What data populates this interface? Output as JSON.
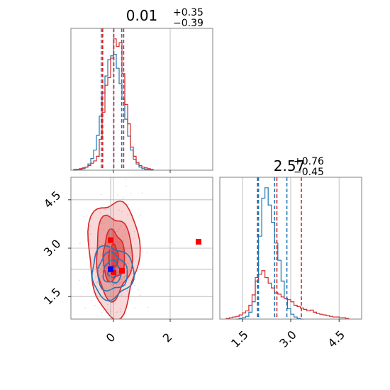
{
  "figure": {
    "type": "corner-plot",
    "colors": {
      "blue": "#1f77b4",
      "red": "#d62728",
      "grid": "#b0b0b0",
      "frame": "#808080",
      "marker_red": "#ff0000",
      "marker_blue": "#0000ff"
    }
  },
  "chart_data": [
    {
      "panel": "hist-param-1",
      "type": "histogram",
      "title": {
        "main": "0.01",
        "sup": "+0.35",
        "sub": "−0.39"
      },
      "xlim": [
        -1.5,
        3.5
      ],
      "gridlines_x": [
        0,
        2
      ],
      "series": [
        {
          "name": "",
          "color": "#1f77b4",
          "bins": [
            -1.4,
            -1.3,
            -1.2,
            -1.1,
            -1.0,
            -0.9,
            -0.8,
            -0.7,
            -0.6,
            -0.5,
            -0.4,
            -0.3,
            -0.2,
            -0.1,
            0.0,
            0.1,
            0.2,
            0.3,
            0.4,
            0.5,
            0.6,
            0.7,
            0.8,
            0.9,
            1.0,
            1.1,
            1.2,
            1.3,
            1.4
          ],
          "counts": [
            0,
            1,
            1,
            2,
            4,
            8,
            15,
            26,
            45,
            70,
            100,
            122,
            143,
            148,
            150,
            132,
            112,
            92,
            66,
            44,
            26,
            14,
            8,
            4,
            2,
            1,
            1,
            0
          ],
          "quantile_lines": [
            -0.43,
            0.01,
            0.29
          ]
        },
        {
          "name": "",
          "color": "#d62728",
          "bins": [
            -1.4,
            -1.3,
            -1.2,
            -1.1,
            -1.0,
            -0.9,
            -0.8,
            -0.7,
            -0.6,
            -0.5,
            -0.4,
            -0.3,
            -0.2,
            -0.1,
            0.0,
            0.1,
            0.2,
            0.3,
            0.4,
            0.5,
            0.6,
            0.7,
            0.8,
            0.9,
            1.0,
            1.1,
            1.2,
            1.3,
            1.4
          ],
          "counts": [
            1,
            1,
            2,
            3,
            4,
            6,
            9,
            12,
            18,
            40,
            75,
            110,
            120,
            145,
            170,
            160,
            165,
            125,
            85,
            60,
            30,
            18,
            10,
            6,
            4,
            3,
            2,
            1
          ],
          "quantile_lines": [
            -0.38,
            0.01,
            0.36
          ]
        }
      ]
    },
    {
      "panel": "joint-2d",
      "type": "contour-scatter",
      "xlim": [
        -1.5,
        3.5
      ],
      "ylim": [
        0.8,
        5.2
      ],
      "xticks": [
        "0",
        "2"
      ],
      "xtick_values": [
        0,
        2
      ],
      "yticks": [
        "1.5",
        "3.0",
        "4.5"
      ],
      "ytick_values": [
        1.5,
        3.0,
        4.5
      ],
      "series": [
        {
          "name": "",
          "color": "#d62728",
          "center": [
            0.0,
            2.75
          ],
          "spread": [
            0.42,
            0.85
          ],
          "contour_levels": [
            0.4,
            0.9,
            1.5,
            2.1
          ]
        },
        {
          "name": "",
          "color": "#1f77b4",
          "center": [
            -0.05,
            2.25
          ],
          "spread": [
            0.35,
            0.38
          ],
          "contour_levels": [
            0.4,
            0.9,
            1.5,
            2.1
          ]
        }
      ],
      "markers": [
        {
          "x": -0.1,
          "y": 3.25,
          "color": "#ff0000"
        },
        {
          "x": 0.0,
          "y": 2.25,
          "color": "#ff0000"
        },
        {
          "x": 0.3,
          "y": 2.3,
          "color": "#ff0000"
        },
        {
          "x": 3.0,
          "y": 3.2,
          "color": "#ff0000"
        },
        {
          "x": -0.1,
          "y": 2.35,
          "color": "#0000ff"
        }
      ],
      "crosshair": {
        "x": -0.1,
        "y": 2.35
      }
    },
    {
      "panel": "hist-param-2",
      "type": "histogram",
      "title": {
        "main": "2.57",
        "sup": "+0.76",
        "sub": "−0.45"
      },
      "xlim": [
        0.8,
        5.2
      ],
      "xticks": [
        "1.5",
        "3.0",
        "4.5"
      ],
      "xtick_values": [
        1.5,
        3.0,
        4.5
      ],
      "gridlines_x": [
        1.5,
        3.0,
        4.5
      ],
      "series": [
        {
          "name": "",
          "color": "#1f77b4",
          "bins": [
            1.3,
            1.4,
            1.5,
            1.6,
            1.7,
            1.8,
            1.9,
            2.0,
            2.1,
            2.2,
            2.3,
            2.4,
            2.5,
            2.6,
            2.7,
            2.8,
            2.9,
            3.0,
            3.1,
            3.2,
            3.3,
            3.4
          ],
          "counts": [
            0,
            1,
            2,
            4,
            10,
            25,
            60,
            120,
            175,
            190,
            165,
            140,
            110,
            85,
            55,
            30,
            15,
            7,
            3,
            1,
            0
          ],
          "quantile_lines": [
            2.0,
            2.5,
            2.88
          ]
        },
        {
          "name": "",
          "color": "#d62728",
          "bins": [
            1.0,
            1.1,
            1.2,
            1.3,
            1.4,
            1.5,
            1.6,
            1.7,
            1.8,
            1.9,
            2.0,
            2.1,
            2.2,
            2.3,
            2.4,
            2.5,
            2.6,
            2.7,
            2.8,
            2.9,
            3.0,
            3.1,
            3.2,
            3.3,
            3.4,
            3.5,
            3.6,
            3.7,
            3.8,
            3.9,
            4.0,
            4.1,
            4.2,
            4.3,
            4.4,
            4.5,
            4.6,
            4.7,
            4.8
          ],
          "counts": [
            1,
            2,
            3,
            4,
            6,
            9,
            12,
            20,
            35,
            55,
            65,
            70,
            60,
            52,
            45,
            38,
            36,
            32,
            30,
            28,
            25,
            20,
            18,
            16,
            14,
            12,
            13,
            10,
            8,
            7,
            6,
            5,
            4,
            3,
            3,
            2,
            2,
            1
          ],
          "quantile_lines": [
            1.97,
            2.57,
            3.33
          ]
        }
      ]
    }
  ]
}
